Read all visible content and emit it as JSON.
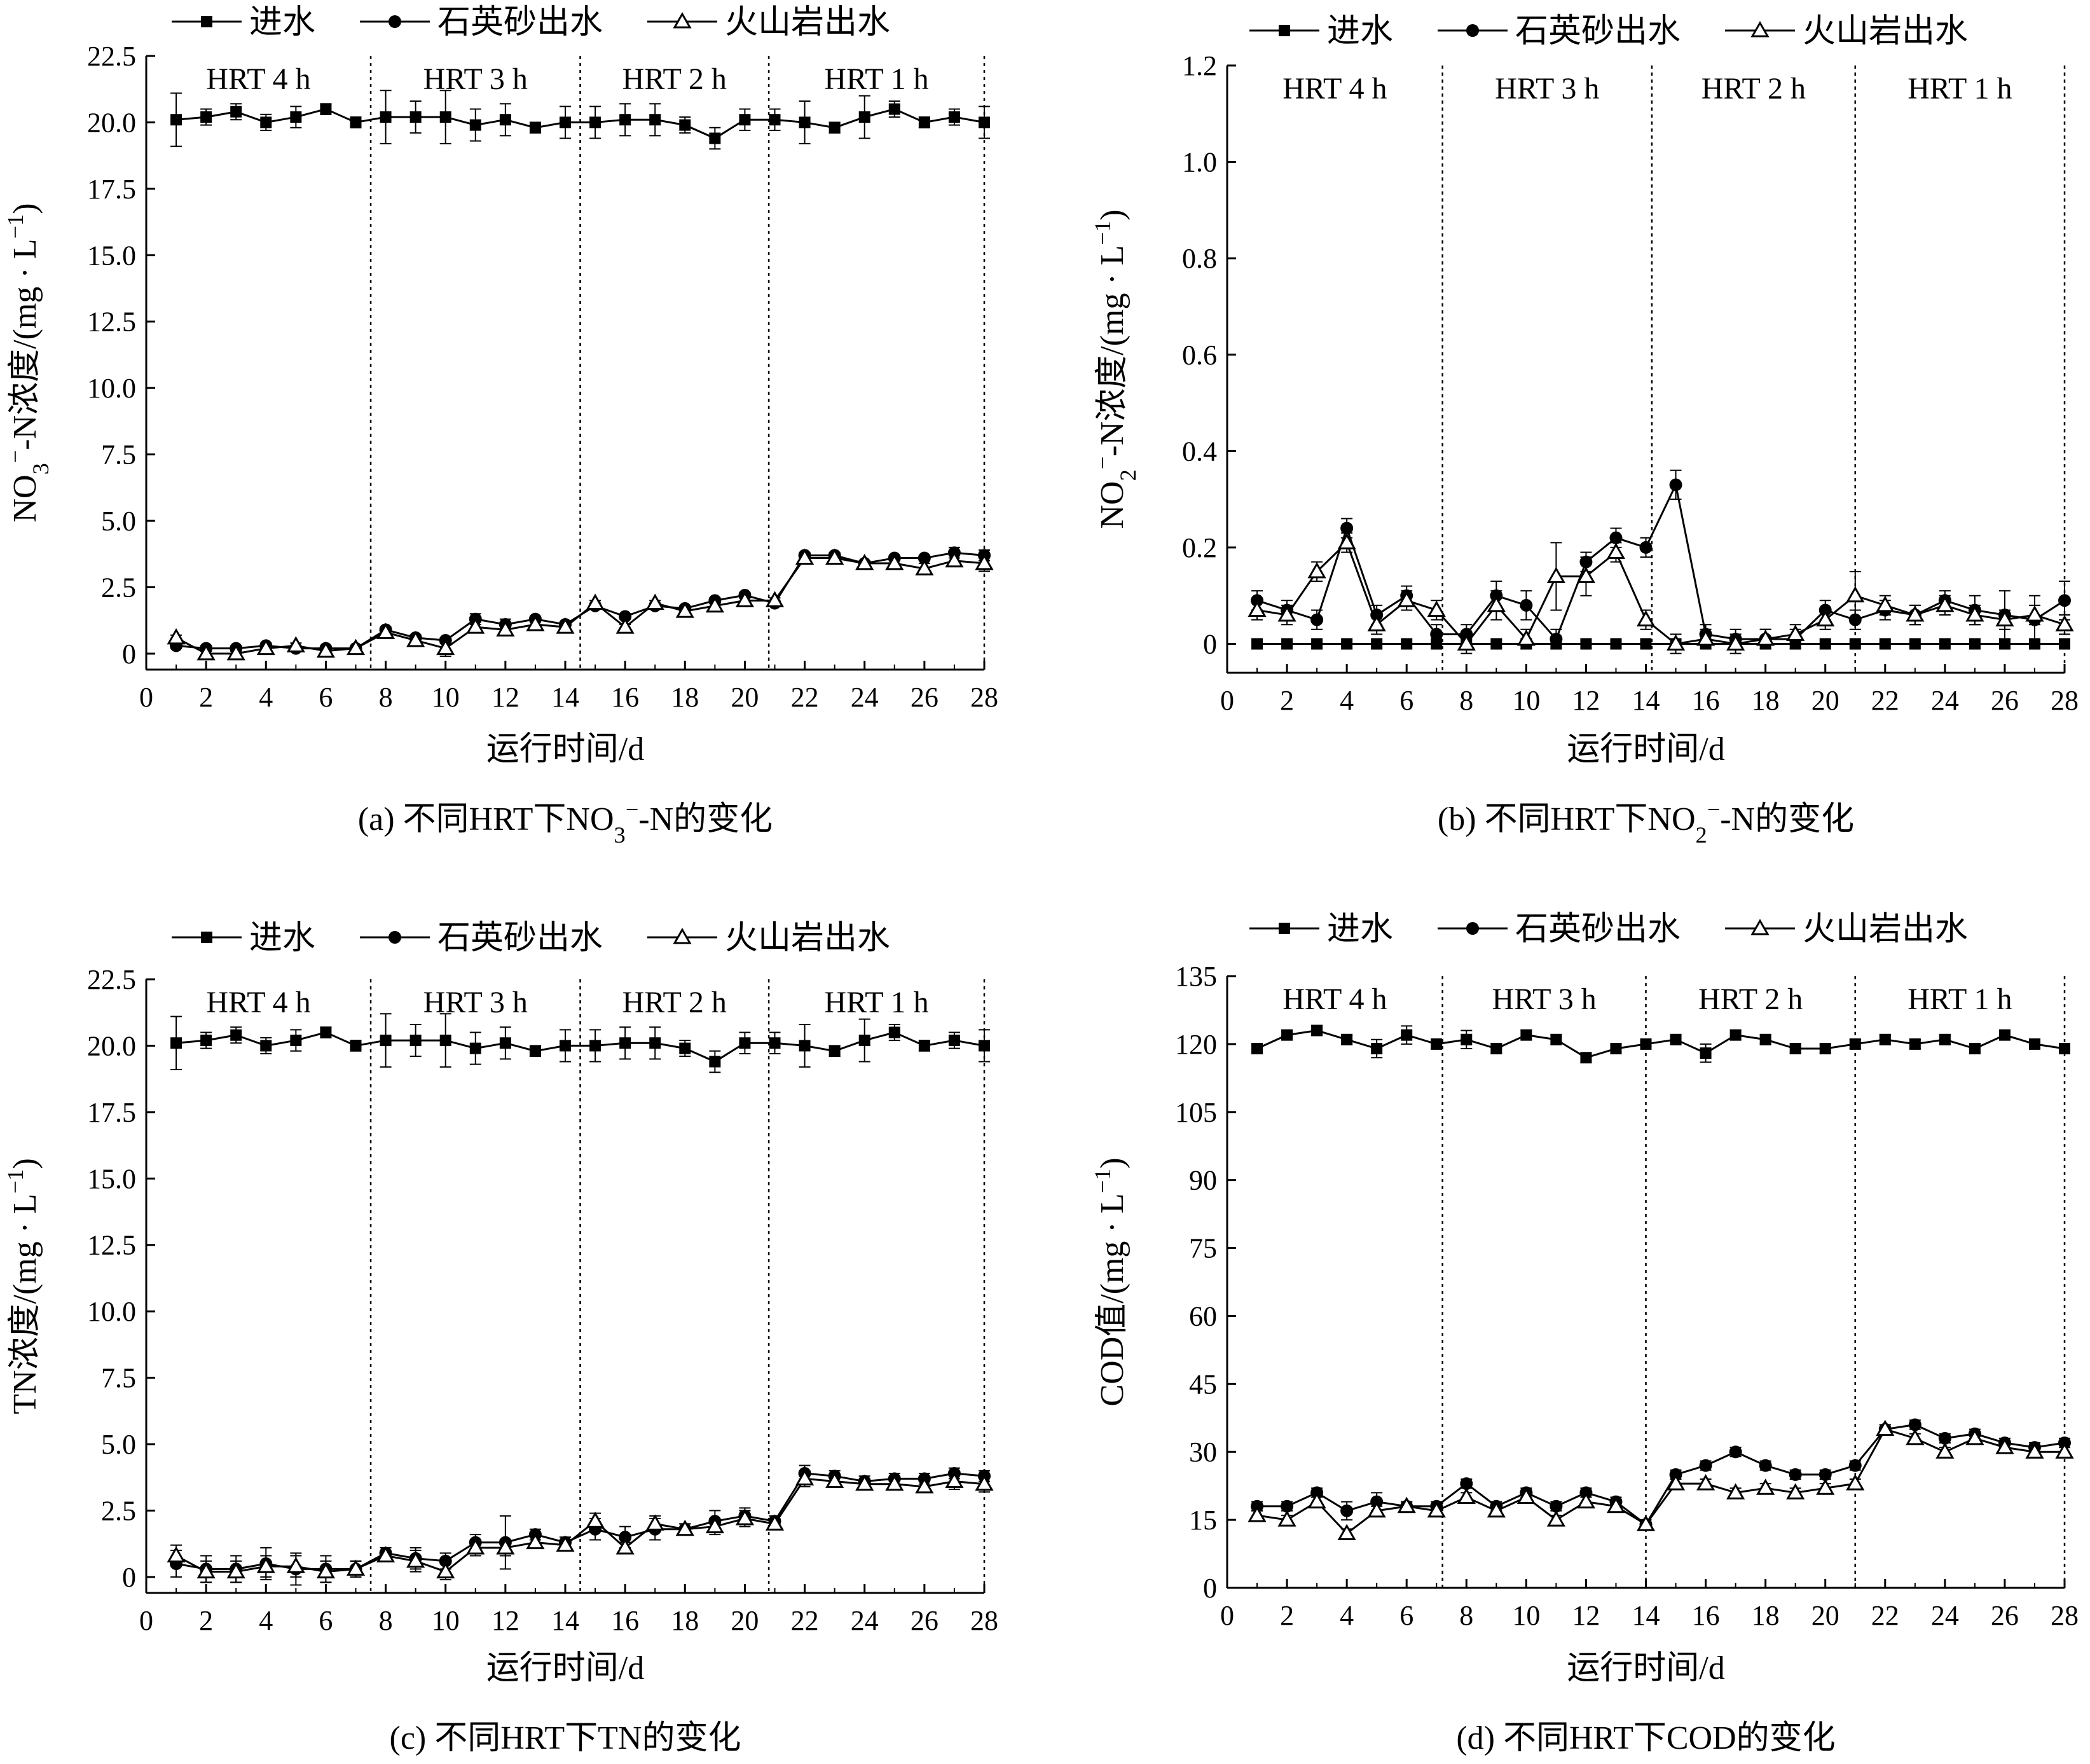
{
  "figure": {
    "legend": [
      "进水",
      "石英砂出水",
      "火山岩出水"
    ],
    "x_axis_label": "运行时间/d",
    "x_ticks": [
      "0",
      "2",
      "4",
      "6",
      "8",
      "10",
      "12",
      "14",
      "16",
      "18",
      "20",
      "22",
      "24",
      "26",
      "28"
    ],
    "hrt_labels": [
      "HRT  4 h",
      "HRT  3 h",
      "HRT  2 h",
      "HRT  1 h"
    ]
  },
  "chart_data": [
    {
      "type": "line",
      "caption": "(a) 不同HRT下NO₃⁻-N的变化",
      "ylabel": "NO₃⁻-N浓度/(mg · L⁻¹)",
      "xlabel": "运行时间/d",
      "xlim": [
        0,
        28
      ],
      "ylim": [
        -0.6,
        22.5
      ],
      "yticks": [
        "0",
        "2.5",
        "5.0",
        "7.5",
        "10.0",
        "12.5",
        "15.0",
        "17.5",
        "20.0",
        "22.5"
      ],
      "ytick_values": [
        0,
        2.5,
        5,
        7.5,
        10,
        12.5,
        15,
        17.5,
        20,
        22.5
      ],
      "hrt_boundaries": [
        7.5,
        14.5,
        20.8,
        28
      ],
      "x": [
        1,
        2,
        3,
        4,
        5,
        6,
        7,
        8,
        9,
        10,
        11,
        12,
        13,
        14,
        15,
        16,
        17,
        18,
        19,
        20,
        21,
        22,
        23,
        24,
        25,
        26,
        27,
        28
      ],
      "series": [
        {
          "name": "进水",
          "marker": "square",
          "values": [
            20.1,
            20.2,
            20.4,
            20.0,
            20.2,
            20.5,
            20.0,
            20.2,
            20.2,
            20.2,
            19.9,
            20.1,
            19.8,
            20.0,
            20.0,
            20.1,
            20.1,
            19.9,
            19.4,
            20.1,
            20.1,
            20.0,
            19.8,
            20.2,
            20.5,
            20.0,
            20.2,
            20.0
          ],
          "errors": [
            1.0,
            0.3,
            0.3,
            0.3,
            0.4,
            0.2,
            0.2,
            1.0,
            0.6,
            1.0,
            0.6,
            0.6,
            0.2,
            0.6,
            0.6,
            0.6,
            0.6,
            0.3,
            0.4,
            0.4,
            0.4,
            0.8,
            0.2,
            0.8,
            0.3,
            0.2,
            0.3,
            0.6
          ]
        },
        {
          "name": "石英砂出水",
          "marker": "circle",
          "values": [
            0.3,
            0.2,
            0.2,
            0.3,
            0.2,
            0.2,
            0.2,
            0.9,
            0.6,
            0.5,
            1.3,
            1.1,
            1.3,
            1.1,
            1.8,
            1.4,
            1.8,
            1.7,
            2.0,
            2.2,
            1.9,
            3.7,
            3.7,
            3.4,
            3.6,
            3.6,
            3.8,
            3.7
          ],
          "errors": [
            0.1,
            0.1,
            0.1,
            0.1,
            0.1,
            0.1,
            0.1,
            0.1,
            0.1,
            0.1,
            0.2,
            0.2,
            0.1,
            0.1,
            0.1,
            0.1,
            0.1,
            0.1,
            0.1,
            0.1,
            0.1,
            0.1,
            0.1,
            0.1,
            0.1,
            0.1,
            0.2,
            0.2
          ]
        },
        {
          "name": "火山岩出水",
          "marker": "triangle",
          "values": [
            0.6,
            0.0,
            0.0,
            0.2,
            0.3,
            0.1,
            0.2,
            0.8,
            0.5,
            0.2,
            1.0,
            0.9,
            1.1,
            1.0,
            1.9,
            1.0,
            1.9,
            1.6,
            1.8,
            2.0,
            2.0,
            3.6,
            3.6,
            3.4,
            3.4,
            3.2,
            3.5,
            3.4
          ],
          "errors": [
            0.1,
            0.1,
            0.1,
            0.1,
            0.1,
            0.1,
            0.1,
            0.1,
            0.1,
            0.3,
            0.2,
            0.2,
            0.1,
            0.1,
            0.1,
            0.1,
            0.1,
            0.1,
            0.1,
            0.1,
            0.1,
            0.1,
            0.1,
            0.1,
            0.1,
            0.2,
            0.2,
            0.3
          ]
        }
      ]
    },
    {
      "type": "line",
      "caption": "(b) 不同HRT下NO₂⁻-N的变化",
      "ylabel": "NO₂⁻-N浓度/(mg · L⁻¹)",
      "xlabel": "运行时间/d",
      "xlim": [
        0,
        28
      ],
      "ylim": [
        -0.06,
        1.2
      ],
      "yticks": [
        "0",
        "0.2",
        "0.4",
        "0.6",
        "0.8",
        "1.0",
        "1.2"
      ],
      "ytick_values": [
        0,
        0.2,
        0.4,
        0.6,
        0.8,
        1.0,
        1.2
      ],
      "hrt_boundaries": [
        7.2,
        14.2,
        21.0,
        28
      ],
      "x": [
        1,
        2,
        3,
        4,
        5,
        6,
        7,
        8,
        9,
        10,
        11,
        12,
        13,
        14,
        15,
        16,
        17,
        18,
        19,
        20,
        21,
        22,
        23,
        24,
        25,
        26,
        27,
        28
      ],
      "series": [
        {
          "name": "进水",
          "marker": "square",
          "values": [
            0,
            0,
            0,
            0,
            0,
            0,
            0,
            0,
            0,
            0,
            0,
            0,
            0,
            0,
            0,
            0,
            0,
            0,
            0,
            0,
            0,
            0,
            0,
            0,
            0,
            0,
            0,
            0
          ],
          "errors": [
            0,
            0,
            0,
            0,
            0,
            0,
            0,
            0,
            0,
            0,
            0,
            0,
            0,
            0,
            0,
            0,
            0,
            0,
            0,
            0,
            0,
            0,
            0,
            0,
            0,
            0,
            0,
            0
          ]
        },
        {
          "name": "石英砂出水",
          "marker": "circle",
          "values": [
            0.09,
            0.07,
            0.05,
            0.24,
            0.06,
            0.1,
            0.02,
            0.02,
            0.1,
            0.08,
            0.01,
            0.17,
            0.22,
            0.2,
            0.33,
            0.02,
            0.01,
            0.01,
            0.01,
            0.07,
            0.05,
            0.07,
            0.06,
            0.09,
            0.07,
            0.06,
            0.05,
            0.09
          ],
          "errors": [
            0.02,
            0.02,
            0.02,
            0.02,
            0.02,
            0.02,
            0.02,
            0.02,
            0.03,
            0.03,
            0.02,
            0.02,
            0.02,
            0.02,
            0.03,
            0.02,
            0.02,
            0.02,
            0.02,
            0.02,
            0.02,
            0.02,
            0.02,
            0.02,
            0.03,
            0.05,
            0.05,
            0.04
          ]
        },
        {
          "name": "火山岩出水",
          "marker": "triangle",
          "values": [
            0.07,
            0.06,
            0.15,
            0.21,
            0.04,
            0.09,
            0.07,
            0.0,
            0.08,
            0.01,
            0.14,
            0.14,
            0.19,
            0.05,
            0.0,
            0.01,
            0.0,
            0.01,
            0.02,
            0.05,
            0.1,
            0.08,
            0.06,
            0.08,
            0.06,
            0.05,
            0.06,
            0.04
          ],
          "errors": [
            0.02,
            0.02,
            0.02,
            0.02,
            0.02,
            0.02,
            0.02,
            0.02,
            0.03,
            0.02,
            0.07,
            0.04,
            0.02,
            0.02,
            0.02,
            0.02,
            0.02,
            0.02,
            0.02,
            0.02,
            0.05,
            0.02,
            0.02,
            0.02,
            0.02,
            0.02,
            0.02,
            0.02
          ]
        }
      ]
    },
    {
      "type": "line",
      "caption": "(c) 不同HRT下TN的变化",
      "ylabel": "TN浓度/(mg · L⁻¹)",
      "xlabel": "运行时间/d",
      "xlim": [
        0,
        28
      ],
      "ylim": [
        -0.6,
        22.5
      ],
      "yticks": [
        "0",
        "2.5",
        "5.0",
        "7.5",
        "10.0",
        "12.5",
        "15.0",
        "17.5",
        "20.0",
        "22.5"
      ],
      "ytick_values": [
        0,
        2.5,
        5,
        7.5,
        10,
        12.5,
        15,
        17.5,
        20,
        22.5
      ],
      "hrt_boundaries": [
        7.5,
        14.5,
        20.8,
        28
      ],
      "x": [
        1,
        2,
        3,
        4,
        5,
        6,
        7,
        8,
        9,
        10,
        11,
        12,
        13,
        14,
        15,
        16,
        17,
        18,
        19,
        20,
        21,
        22,
        23,
        24,
        25,
        26,
        27,
        28
      ],
      "series": [
        {
          "name": "进水",
          "marker": "square",
          "values": [
            20.1,
            20.2,
            20.4,
            20.0,
            20.2,
            20.5,
            20.0,
            20.2,
            20.2,
            20.2,
            19.9,
            20.1,
            19.8,
            20.0,
            20.0,
            20.1,
            20.1,
            19.9,
            19.4,
            20.1,
            20.1,
            20.0,
            19.8,
            20.2,
            20.5,
            20.0,
            20.2,
            20.0
          ],
          "errors": [
            1.0,
            0.3,
            0.3,
            0.3,
            0.4,
            0.2,
            0.2,
            1.0,
            0.6,
            1.0,
            0.6,
            0.6,
            0.2,
            0.6,
            0.6,
            0.6,
            0.6,
            0.3,
            0.4,
            0.4,
            0.4,
            0.8,
            0.2,
            0.8,
            0.3,
            0.2,
            0.3,
            0.6
          ]
        },
        {
          "name": "石英砂出水",
          "marker": "circle",
          "values": [
            0.5,
            0.3,
            0.3,
            0.5,
            0.3,
            0.3,
            0.3,
            0.9,
            0.7,
            0.6,
            1.3,
            1.3,
            1.6,
            1.3,
            1.8,
            1.5,
            1.8,
            1.8,
            2.1,
            2.3,
            2.1,
            3.9,
            3.8,
            3.6,
            3.7,
            3.7,
            3.9,
            3.8
          ],
          "errors": [
            0.5,
            0.5,
            0.5,
            0.6,
            0.6,
            0.5,
            0.3,
            0.2,
            0.4,
            0.3,
            0.3,
            1.0,
            0.2,
            0.2,
            0.4,
            0.4,
            0.4,
            0.2,
            0.4,
            0.3,
            0.2,
            0.3,
            0.2,
            0.2,
            0.2,
            0.2,
            0.2,
            0.2
          ]
        },
        {
          "name": "火山岩出水",
          "marker": "triangle",
          "values": [
            0.8,
            0.2,
            0.2,
            0.4,
            0.4,
            0.2,
            0.3,
            0.8,
            0.6,
            0.2,
            1.1,
            1.1,
            1.3,
            1.2,
            2.1,
            1.1,
            2.0,
            1.8,
            1.9,
            2.2,
            2.0,
            3.7,
            3.6,
            3.5,
            3.5,
            3.4,
            3.6,
            3.5
          ],
          "errors": [
            0.4,
            0.4,
            0.4,
            0.4,
            0.4,
            0.4,
            0.3,
            0.2,
            0.4,
            0.3,
            0.3,
            0.3,
            0.2,
            0.2,
            0.3,
            0.2,
            0.3,
            0.2,
            0.3,
            0.3,
            0.2,
            0.3,
            0.2,
            0.2,
            0.2,
            0.2,
            0.3,
            0.3
          ]
        }
      ]
    },
    {
      "type": "line",
      "caption": "(d) 不同HRT下COD的变化",
      "ylabel": "COD值/(mg · L⁻¹)",
      "xlabel": "运行时间/d",
      "xlim": [
        0,
        28
      ],
      "ylim": [
        0,
        135
      ],
      "yticks": [
        "0",
        "15",
        "30",
        "45",
        "60",
        "75",
        "90",
        "105",
        "120",
        "135"
      ],
      "ytick_values": [
        0,
        15,
        30,
        45,
        60,
        75,
        90,
        105,
        120,
        135
      ],
      "hrt_boundaries": [
        7.2,
        14.0,
        21.0,
        28
      ],
      "x": [
        1,
        2,
        3,
        4,
        5,
        6,
        7,
        8,
        9,
        10,
        11,
        12,
        13,
        14,
        15,
        16,
        17,
        18,
        19,
        20,
        21,
        22,
        23,
        24,
        25,
        26,
        27,
        28
      ],
      "series": [
        {
          "name": "进水",
          "marker": "square",
          "values": [
            119,
            122,
            123,
            121,
            119,
            122,
            120,
            121,
            119,
            122,
            121,
            117,
            119,
            120,
            121,
            118,
            122,
            121,
            119,
            119,
            120,
            121,
            120,
            121,
            119,
            122,
            120,
            119
          ],
          "errors": [
            1,
            1,
            1,
            1,
            2,
            2,
            1,
            2,
            1,
            1,
            1,
            1,
            1,
            1,
            1,
            2,
            1,
            1,
            1,
            1,
            1,
            1,
            1,
            1,
            1,
            1,
            1,
            1
          ]
        },
        {
          "name": "石英砂出水",
          "marker": "circle",
          "values": [
            18,
            18,
            21,
            17,
            19,
            18,
            18,
            23,
            18,
            21,
            18,
            21,
            19,
            14,
            25,
            27,
            30,
            27,
            25,
            25,
            27,
            35,
            36,
            33,
            34,
            32,
            31,
            32
          ],
          "errors": [
            1,
            1,
            1,
            2,
            2,
            1,
            1,
            1,
            1,
            1,
            1,
            1,
            1,
            1,
            1,
            1,
            1,
            1,
            1,
            1,
            1,
            1,
            1,
            1,
            1,
            1,
            1,
            1
          ]
        },
        {
          "name": "火山岩出水",
          "marker": "triangle",
          "values": [
            16,
            15,
            19,
            12,
            17,
            18,
            17,
            20,
            17,
            20,
            15,
            19,
            18,
            14,
            23,
            23,
            21,
            22,
            21,
            22,
            23,
            35,
            33,
            30,
            33,
            31,
            30,
            30
          ],
          "errors": [
            1,
            1,
            1,
            1,
            1,
            1,
            1,
            1,
            1,
            1,
            1,
            1,
            1,
            1,
            1,
            1,
            1,
            1,
            1,
            1,
            1,
            1,
            1,
            1,
            1,
            1,
            1,
            1
          ]
        }
      ]
    }
  ]
}
